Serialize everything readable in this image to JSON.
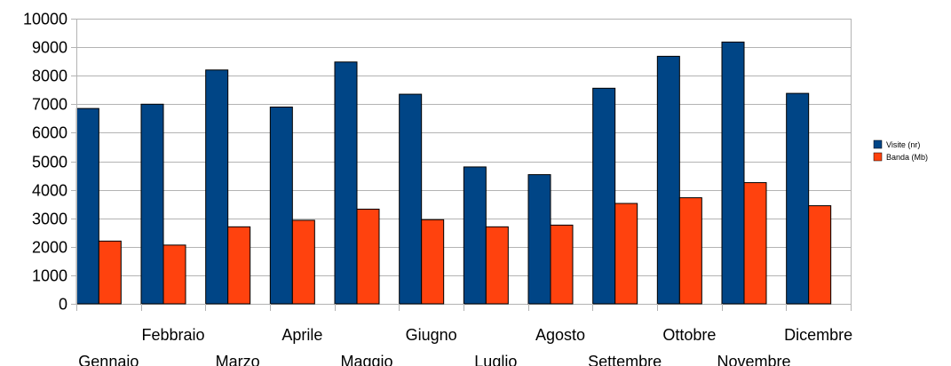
{
  "chart_data": {
    "type": "bar",
    "categories": [
      "Gennaio",
      "Febbraio",
      "Marzo",
      "Aprile",
      "Maggio",
      "Giugno",
      "Luglio",
      "Agosto",
      "Settembre",
      "Ottobre",
      "Novembre",
      "Dicembre"
    ],
    "series": [
      {
        "name": "Visite (nr)",
        "color": "#004586",
        "values": [
          6850,
          7000,
          8200,
          6900,
          8480,
          7350,
          4800,
          4530,
          7560,
          8680,
          9180,
          7380
        ]
      },
      {
        "name": "Banda (Mb)",
        "color": "#ff420e",
        "values": [
          2200,
          2060,
          2700,
          2930,
          3320,
          2950,
          2700,
          2760,
          3520,
          3720,
          4250,
          3440
        ]
      }
    ],
    "yticks": [
      0,
      1000,
      2000,
      3000,
      4000,
      5000,
      6000,
      7000,
      8000,
      9000,
      10000
    ],
    "ylim": [
      0,
      10000
    ],
    "grid": true,
    "legend_position": "right",
    "title": "",
    "xlabel": "",
    "ylabel": ""
  }
}
